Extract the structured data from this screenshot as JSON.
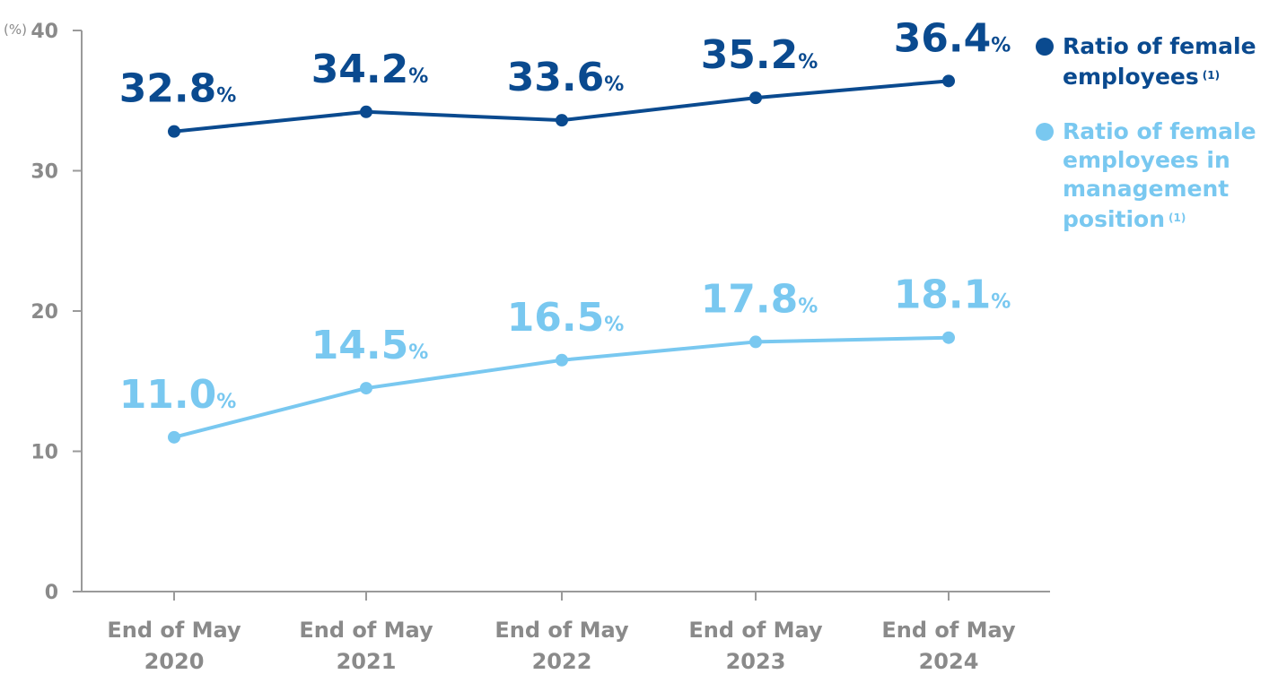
{
  "chart_data": {
    "type": "line",
    "categories": [
      [
        "End of May",
        "2020"
      ],
      [
        "End of May",
        "2021"
      ],
      [
        "End of May",
        "2022"
      ],
      [
        "End of May",
        "2023"
      ],
      [
        "End of May",
        "2024"
      ]
    ],
    "series": [
      {
        "name": "Ratio of female employees",
        "note": "(1)",
        "color": "#0a4a8f",
        "values": [
          32.8,
          34.2,
          33.6,
          35.2,
          36.4
        ],
        "labels": [
          "32.8",
          "34.2",
          "33.6",
          "35.2",
          "36.4"
        ]
      },
      {
        "name": "Ratio of female employees in management position",
        "note": "(1)",
        "color": "#79c8f0",
        "values": [
          11.0,
          14.5,
          16.5,
          17.8,
          18.1
        ],
        "labels": [
          "11.0",
          "14.5",
          "16.5",
          "17.8",
          "18.1"
        ]
      }
    ],
    "value_suffix": "%",
    "ylabel": "(%)",
    "ylim": [
      0,
      40
    ],
    "yticks": [
      0,
      10,
      20,
      30,
      40
    ],
    "grid": false,
    "legend_position": "right"
  },
  "legend": [
    {
      "label": "Ratio of female employees",
      "note": "(1)",
      "color": "#0a4a8f"
    },
    {
      "label": "Ratio of female employees in management position",
      "note": "(1)",
      "color": "#79c8f0"
    }
  ]
}
